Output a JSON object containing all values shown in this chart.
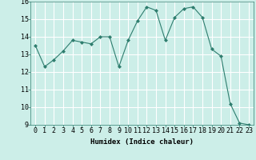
{
  "x": [
    0,
    1,
    2,
    3,
    4,
    5,
    6,
    7,
    8,
    9,
    10,
    11,
    12,
    13,
    14,
    15,
    16,
    17,
    18,
    19,
    20,
    21,
    22,
    23
  ],
  "y": [
    13.5,
    12.3,
    12.7,
    13.2,
    13.8,
    13.7,
    13.6,
    14.0,
    14.0,
    12.3,
    13.8,
    14.9,
    15.7,
    15.5,
    13.8,
    15.1,
    15.6,
    15.7,
    15.1,
    13.3,
    12.9,
    10.2,
    9.1,
    9.0
  ],
  "line_color": "#2e7d6e",
  "marker": "D",
  "marker_size": 2,
  "bg_color": "#cceee8",
  "grid_color": "#ffffff",
  "xlabel": "Humidex (Indice chaleur)",
  "ylim": [
    9,
    16
  ],
  "xlim": [
    -0.5,
    23.5
  ],
  "yticks": [
    9,
    10,
    11,
    12,
    13,
    14,
    15,
    16
  ],
  "xticks": [
    0,
    1,
    2,
    3,
    4,
    5,
    6,
    7,
    8,
    9,
    10,
    11,
    12,
    13,
    14,
    15,
    16,
    17,
    18,
    19,
    20,
    21,
    22,
    23
  ],
  "xlabel_fontsize": 6.5,
  "tick_fontsize": 6
}
